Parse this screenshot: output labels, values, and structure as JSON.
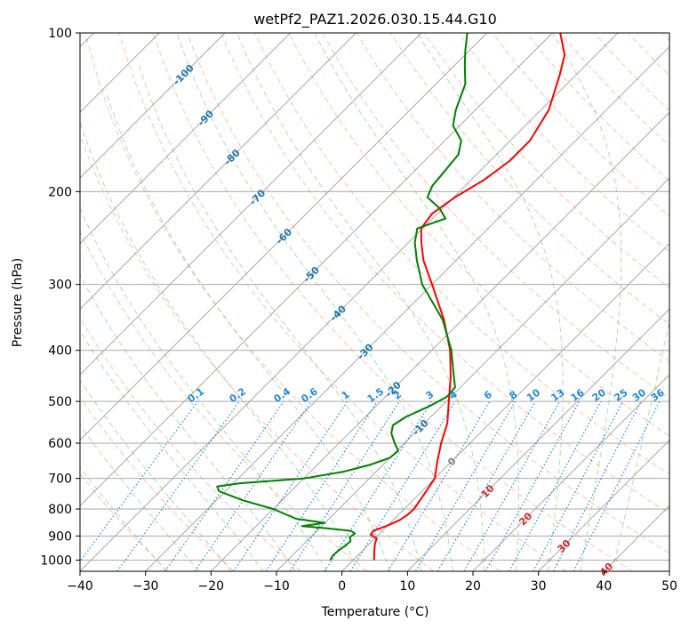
{
  "chart_data": {
    "type": "line",
    "subtype": "skew-t log-p diagram",
    "title": "wetPf2_PAZ1.2026.030.15.44.G10",
    "xlabel": "Temperature (°C)",
    "ylabel": "Pressure (hPa)",
    "xlim": [
      -40,
      50
    ],
    "ylim": [
      1050,
      100
    ],
    "y_scale": "log",
    "grid": true,
    "x_ticks": [
      -40,
      -30,
      -20,
      -10,
      0,
      10,
      20,
      30,
      40,
      50
    ],
    "x_tick_labels": [
      "−40",
      "−30",
      "−20",
      "−10",
      "0",
      "10",
      "20",
      "30",
      "40",
      "50"
    ],
    "y_ticks": [
      100,
      200,
      300,
      400,
      500,
      600,
      700,
      800,
      900,
      1000
    ],
    "y_tick_labels": [
      "100",
      "200",
      "300",
      "400",
      "500",
      "600",
      "700",
      "800",
      "900",
      "1000"
    ],
    "series": [
      {
        "color": "#ff0000",
        "points": [
          {
            "p": 1000,
            "t": 3.2
          },
          {
            "p": 960,
            "t": 1.8
          },
          {
            "p": 930,
            "t": 0.8
          },
          {
            "p": 910,
            "t": 0.3
          },
          {
            "p": 895,
            "t": -1.2
          },
          {
            "p": 880,
            "t": -1.4
          },
          {
            "p": 860,
            "t": 0.0
          },
          {
            "p": 840,
            "t": 1.0
          },
          {
            "p": 820,
            "t": 1.4
          },
          {
            "p": 800,
            "t": 1.5
          },
          {
            "p": 750,
            "t": 0.8
          },
          {
            "p": 700,
            "t": 0.0
          },
          {
            "p": 650,
            "t": -2.2
          },
          {
            "p": 600,
            "t": -4.4
          },
          {
            "p": 550,
            "t": -6.5
          },
          {
            "p": 500,
            "t": -9.6
          },
          {
            "p": 450,
            "t": -13.0
          },
          {
            "p": 400,
            "t": -17.2
          },
          {
            "p": 350,
            "t": -22.8
          },
          {
            "p": 300,
            "t": -30.0
          },
          {
            "p": 270,
            "t": -35.0
          },
          {
            "p": 250,
            "t": -38.0
          },
          {
            "p": 235,
            "t": -40.2
          },
          {
            "p": 220,
            "t": -40.8
          },
          {
            "p": 205,
            "t": -39.8
          },
          {
            "p": 190,
            "t": -38.0
          },
          {
            "p": 175,
            "t": -37.0
          },
          {
            "p": 160,
            "t": -37.0
          },
          {
            "p": 140,
            "t": -38.8
          },
          {
            "p": 120,
            "t": -42.5
          },
          {
            "p": 110,
            "t": -44.8
          },
          {
            "p": 100,
            "t": -48.8
          }
        ]
      },
      {
        "color": "#008000",
        "points": [
          {
            "p": 1000,
            "t": -3.5
          },
          {
            "p": 980,
            "t": -3.8
          },
          {
            "p": 960,
            "t": -3.7
          },
          {
            "p": 940,
            "t": -3.4
          },
          {
            "p": 920,
            "t": -3.3
          },
          {
            "p": 905,
            "t": -4.0
          },
          {
            "p": 890,
            "t": -3.8
          },
          {
            "p": 880,
            "t": -4.8
          },
          {
            "p": 870,
            "t": -9.0
          },
          {
            "p": 862,
            "t": -13.0
          },
          {
            "p": 850,
            "t": -10.0
          },
          {
            "p": 835,
            "t": -15.0
          },
          {
            "p": 800,
            "t": -20.0
          },
          {
            "p": 770,
            "t": -26.0
          },
          {
            "p": 740,
            "t": -31.0
          },
          {
            "p": 725,
            "t": -32.0
          },
          {
            "p": 715,
            "t": -29.0
          },
          {
            "p": 700,
            "t": -20.0
          },
          {
            "p": 680,
            "t": -15.0
          },
          {
            "p": 660,
            "t": -12.0
          },
          {
            "p": 640,
            "t": -10.0
          },
          {
            "p": 620,
            "t": -9.8
          },
          {
            "p": 600,
            "t": -11.5
          },
          {
            "p": 575,
            "t": -13.5
          },
          {
            "p": 555,
            "t": -14.5
          },
          {
            "p": 535,
            "t": -13.8
          },
          {
            "p": 510,
            "t": -11.8
          },
          {
            "p": 490,
            "t": -10.6
          },
          {
            "p": 470,
            "t": -10.8
          },
          {
            "p": 450,
            "t": -12.5
          },
          {
            "p": 400,
            "t": -17.0
          },
          {
            "p": 350,
            "t": -23.0
          },
          {
            "p": 300,
            "t": -31.5
          },
          {
            "p": 270,
            "t": -36.0
          },
          {
            "p": 250,
            "t": -39.0
          },
          {
            "p": 235,
            "t": -40.8
          },
          {
            "p": 225,
            "t": -38.0
          },
          {
            "p": 215,
            "t": -40.5
          },
          {
            "p": 205,
            "t": -44.0
          },
          {
            "p": 195,
            "t": -45.0
          },
          {
            "p": 185,
            "t": -45.3
          },
          {
            "p": 170,
            "t": -45.8
          },
          {
            "p": 160,
            "t": -47.5
          },
          {
            "p": 150,
            "t": -51.0
          },
          {
            "p": 140,
            "t": -53.0
          },
          {
            "p": 125,
            "t": -55.5
          },
          {
            "p": 115,
            "t": -58.5
          },
          {
            "p": 108,
            "t": -60.6
          },
          {
            "p": 100,
            "t": -63.0
          }
        ]
      }
    ],
    "isotherm_labels": [
      "-100",
      "-90",
      "-80",
      "-70",
      "-60",
      "-50",
      "-40",
      "-30",
      "-20",
      "-10",
      "0",
      "10",
      "20",
      "30",
      "40"
    ],
    "mixing_ratio_labels": [
      "0.1",
      "0.2",
      "0.4",
      "0.6",
      "1",
      "1.5",
      "2",
      "3",
      "4",
      "6",
      "8",
      "10",
      "13",
      "16",
      "20",
      "25",
      "30",
      "36"
    ],
    "colors": {
      "temperature": "#ff0000",
      "dewpoint": "#008000",
      "isotherm": "#808080",
      "dry_adiabat": "#ff8c66",
      "moist_adiabat": "#7cc47c",
      "mixing_ratio": "#1e88e5",
      "cold_label": "#1f77b4",
      "warm_label": "#d62728",
      "zero_label": "#808080"
    }
  }
}
